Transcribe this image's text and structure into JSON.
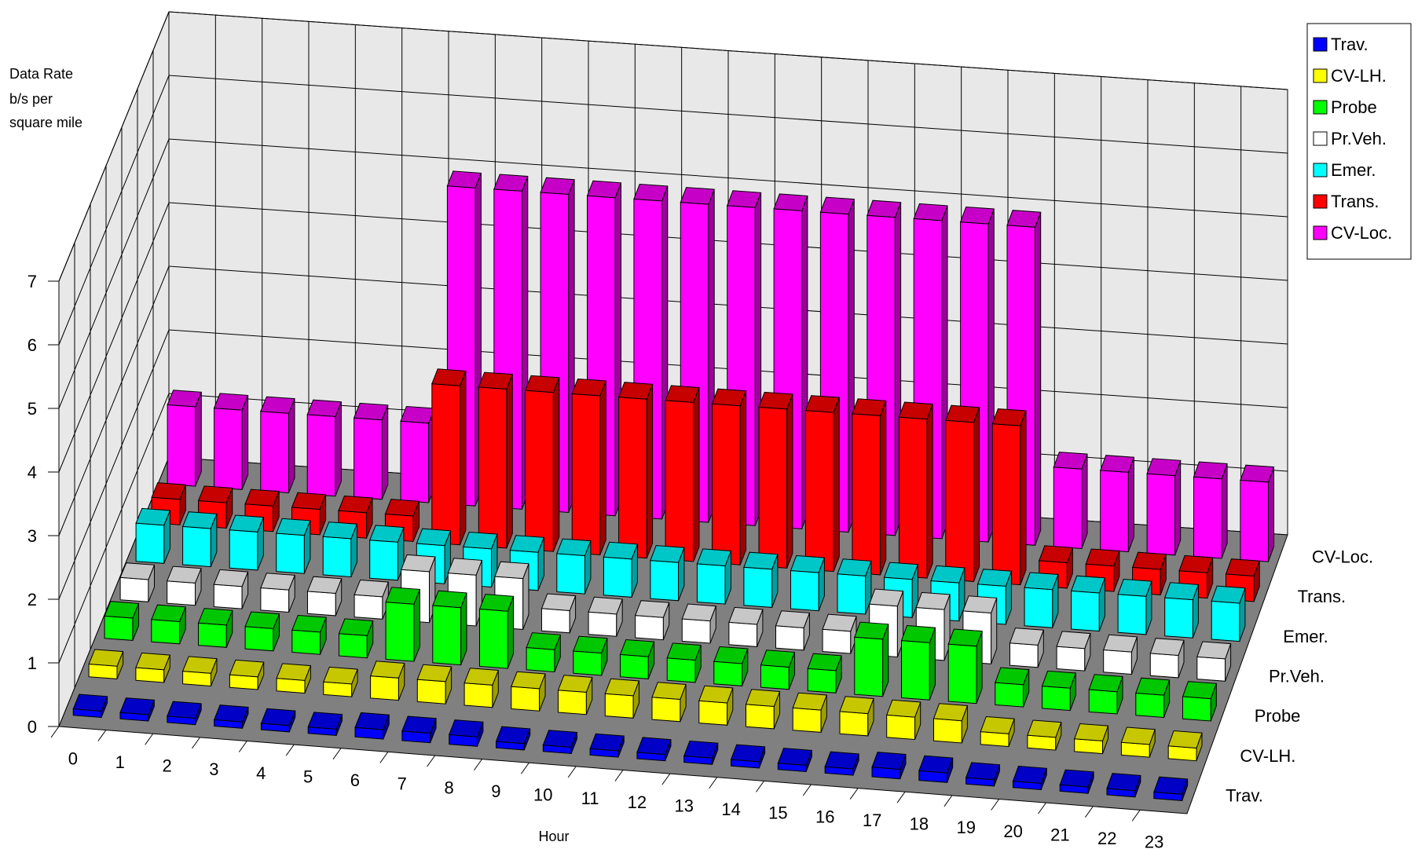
{
  "chart_data": {
    "type": "bar",
    "subtype": "3d-column",
    "ylabel_lines": [
      "Data Rate",
      "b/s per",
      "square mile"
    ],
    "xlabel": "Hour",
    "x": [
      "0",
      "1",
      "2",
      "3",
      "4",
      "5",
      "6",
      "7",
      "8",
      "9",
      "10",
      "11",
      "12",
      "13",
      "14",
      "15",
      "16",
      "17",
      "18",
      "19",
      "20",
      "21",
      "22",
      "23"
    ],
    "yticks": [
      "0",
      "1",
      "2",
      "3",
      "4",
      "5",
      "6",
      "7"
    ],
    "ylim": [
      0,
      7
    ],
    "legend_position": "top-right",
    "series": [
      {
        "name": "Trav.",
        "color": "#0000ff",
        "values": [
          0.1,
          0.1,
          0.1,
          0.1,
          0.1,
          0.1,
          0.15,
          0.15,
          0.15,
          0.1,
          0.1,
          0.1,
          0.1,
          0.1,
          0.1,
          0.1,
          0.1,
          0.15,
          0.15,
          0.1,
          0.1,
          0.1,
          0.1,
          0.1
        ]
      },
      {
        "name": "CV-LH.",
        "color": "#ffff00",
        "values": [
          0.2,
          0.2,
          0.2,
          0.2,
          0.2,
          0.2,
          0.35,
          0.35,
          0.35,
          0.35,
          0.35,
          0.35,
          0.35,
          0.35,
          0.35,
          0.35,
          0.35,
          0.35,
          0.35,
          0.2,
          0.2,
          0.2,
          0.2,
          0.2
        ]
      },
      {
        "name": "Probe",
        "color": "#00ff00",
        "values": [
          0.35,
          0.35,
          0.35,
          0.35,
          0.35,
          0.35,
          0.9,
          0.9,
          0.9,
          0.35,
          0.35,
          0.35,
          0.35,
          0.35,
          0.35,
          0.35,
          0.9,
          0.9,
          0.9,
          0.35,
          0.35,
          0.35,
          0.35,
          0.35
        ]
      },
      {
        "name": "Pr.Veh.",
        "color": "#ffffff",
        "values": [
          0.35,
          0.35,
          0.35,
          0.35,
          0.35,
          0.35,
          0.8,
          0.8,
          0.8,
          0.35,
          0.35,
          0.35,
          0.35,
          0.35,
          0.35,
          0.35,
          0.8,
          0.8,
          0.8,
          0.35,
          0.35,
          0.35,
          0.35,
          0.35
        ]
      },
      {
        "name": "Emer.",
        "color": "#00ffff",
        "values": [
          0.6,
          0.6,
          0.6,
          0.6,
          0.6,
          0.6,
          0.6,
          0.6,
          0.6,
          0.6,
          0.6,
          0.6,
          0.6,
          0.6,
          0.6,
          0.6,
          0.6,
          0.6,
          0.6,
          0.6,
          0.6,
          0.6,
          0.6,
          0.6
        ]
      },
      {
        "name": "Trans.",
        "color": "#ff0000",
        "values": [
          0.4,
          0.4,
          0.4,
          0.4,
          0.4,
          0.4,
          2.5,
          2.5,
          2.5,
          2.5,
          2.5,
          2.5,
          2.5,
          2.5,
          2.5,
          2.5,
          2.5,
          2.5,
          2.5,
          0.4,
          0.4,
          0.4,
          0.4,
          0.4
        ]
      },
      {
        "name": "CV-Loc.",
        "color": "#ff00ff",
        "values": [
          1.25,
          1.25,
          1.25,
          1.25,
          1.25,
          1.25,
          5.0,
          5.0,
          5.0,
          5.0,
          5.0,
          5.0,
          5.0,
          5.0,
          5.0,
          5.0,
          5.0,
          5.0,
          5.0,
          1.25,
          1.25,
          1.25,
          1.25,
          1.25
        ]
      }
    ]
  }
}
